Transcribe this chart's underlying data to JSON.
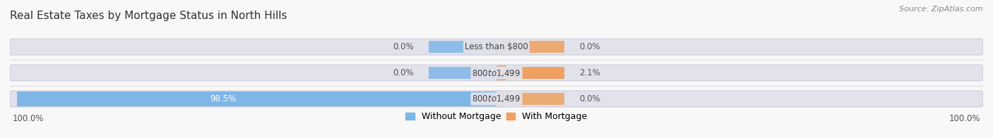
{
  "title": "Real Estate Taxes by Mortgage Status in North Hills",
  "source": "Source: ZipAtlas.com",
  "categories": [
    "Less than $800",
    "$800 to $1,499",
    "$800 to $1,499"
  ],
  "without_mortgage": [
    0.0,
    0.0,
    98.5
  ],
  "with_mortgage": [
    0.0,
    2.1,
    0.0
  ],
  "color_without": "#7EB6E8",
  "color_with": "#F0A060",
  "bar_bg_color": "#E2E2EC",
  "bar_bg_edge_color": "#CCCCDA",
  "background_color": "#F8F8F8",
  "xlim": 100.0,
  "legend_without": "Without Mortgage",
  "legend_with": "With Mortgage",
  "title_fontsize": 11,
  "label_fontsize": 8.5,
  "source_fontsize": 8,
  "legend_fontsize": 9
}
